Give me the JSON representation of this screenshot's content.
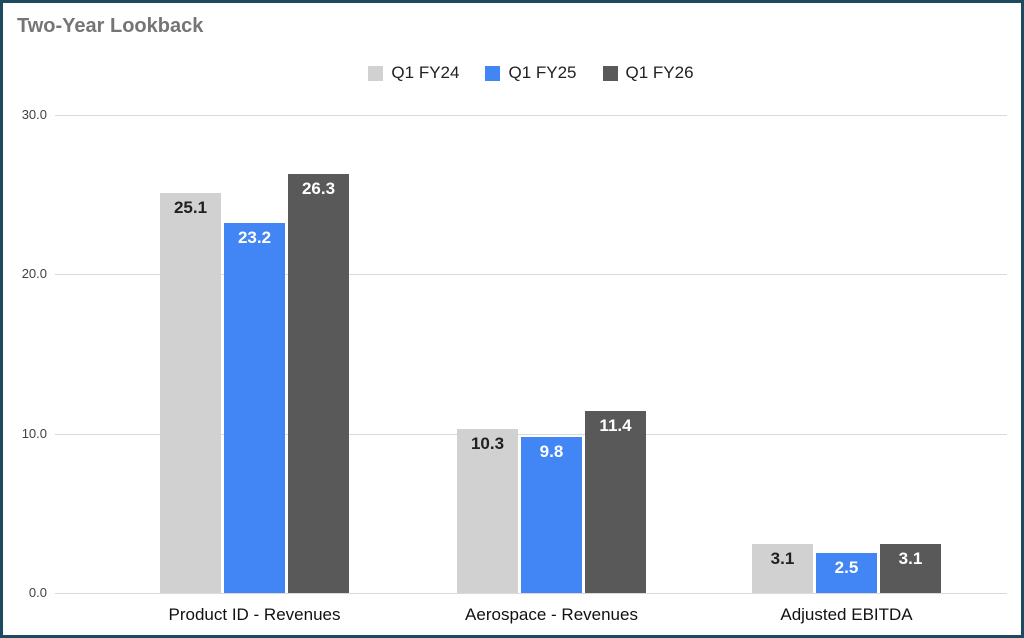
{
  "title": "Two-Year Lookback",
  "chart_data": {
    "type": "bar",
    "title": "Two-Year Lookback",
    "categories": [
      "Product ID - Revenues",
      "Aerospace - Revenues",
      "Adjusted EBITDA"
    ],
    "series": [
      {
        "name": "Q1 FY24",
        "values": [
          25.1,
          10.3,
          3.1
        ],
        "color": "#d1d1d1",
        "label_color": "#212121"
      },
      {
        "name": "Q1 FY25",
        "values": [
          23.2,
          9.8,
          2.5
        ],
        "color": "#4285f4",
        "label_color": "#ffffff"
      },
      {
        "name": "Q1 FY26",
        "values": [
          26.3,
          11.4,
          3.1
        ],
        "color": "#595959",
        "label_color": "#ffffff"
      }
    ],
    "xlabel": "",
    "ylabel": "",
    "ylim": [
      0,
      30
    ],
    "y_ticks": [
      "30.0",
      "20.0",
      "10.0",
      "0.0"
    ],
    "grid": true,
    "legend_position": "top",
    "data_labels": true
  },
  "colors": {
    "background": "#ffffff",
    "border": "#1d4a5f",
    "title": "#757575",
    "gridline": "#dadada",
    "axis_text": "#424242",
    "category_text": "#111111"
  }
}
